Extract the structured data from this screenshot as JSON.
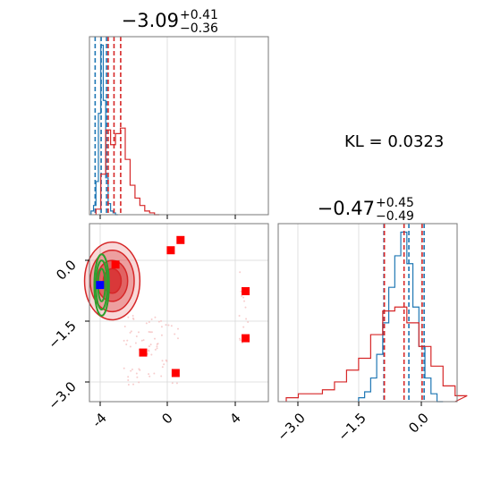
{
  "chart_data": [
    {
      "type": "histogram",
      "panel": "top-left marginal",
      "title": {
        "value": "−3.09",
        "plus": "+0.41",
        "minus": "−0.36"
      },
      "xlim": [
        -4.6,
        6.4
      ],
      "x_ticks": [
        -4,
        0,
        4
      ],
      "grid": true,
      "series": [
        {
          "color": "#1f77b4",
          "bins": [
            -4.5,
            -4.35,
            -4.2,
            -4.05,
            -3.9,
            -3.75,
            -3.6,
            -3.45,
            -3.3,
            -3.15,
            -3.0
          ],
          "counts": [
            2,
            5,
            18,
            55,
            92,
            62,
            20,
            6,
            2,
            1,
            0
          ],
          "quantile_lines": [
            -4.25,
            -3.88,
            -3.55
          ]
        },
        {
          "color": "#d62728",
          "bins": [
            -4.2,
            -3.9,
            -3.6,
            -3.3,
            -3.0,
            -2.7,
            -2.4,
            -2.1,
            -1.8,
            -1.5,
            -1.2,
            -0.9,
            -0.6
          ],
          "counts": [
            3,
            22,
            46,
            38,
            44,
            47,
            30,
            16,
            9,
            5,
            2,
            1,
            0
          ],
          "quantile_lines": [
            -3.45,
            -3.09,
            -2.68
          ]
        }
      ]
    },
    {
      "type": "histogram",
      "panel": "bottom-right marginal",
      "title": {
        "value": "−0.47",
        "plus": "+0.45",
        "minus": "−0.49"
      },
      "xlim": [
        -3.6,
        0.85
      ],
      "x_ticks": [
        -3.0,
        -1.5,
        0.0
      ],
      "x_tick_labels": [
        "−3.0",
        "−1.5",
        "0.0"
      ],
      "grid": true,
      "series": [
        {
          "color": "#1f77b4",
          "bins": [
            -1.6,
            -1.45,
            -1.3,
            -1.15,
            -1.0,
            -0.85,
            -0.7,
            -0.55,
            -0.4,
            -0.25,
            -0.1,
            0.05,
            0.2,
            0.35
          ],
          "counts": [
            2,
            5,
            12,
            24,
            40,
            58,
            74,
            86,
            70,
            48,
            28,
            12,
            4,
            0
          ],
          "quantile_lines": [
            -0.97,
            -0.35,
            0.03
          ]
        },
        {
          "color": "#d62728",
          "bins": [
            -3.4,
            -3.1,
            -2.8,
            -2.5,
            -2.2,
            -1.9,
            -1.6,
            -1.3,
            -1.0,
            -0.7,
            -0.4,
            -0.1,
            0.2,
            0.5,
            0.8
          ],
          "counts": [
            2,
            4,
            4,
            6,
            10,
            16,
            22,
            34,
            46,
            48,
            40,
            28,
            18,
            8,
            3
          ],
          "quantile_lines": [
            -0.96,
            -0.47,
            -0.02
          ]
        }
      ]
    },
    {
      "type": "scatter",
      "panel": "bottom-left joint",
      "xlim": [
        -4.6,
        6.4
      ],
      "ylim": [
        -3.5,
        0.85
      ],
      "x_ticks": [
        -4,
        0,
        4
      ],
      "y_ticks": [
        0.0,
        -1.5,
        -3.0
      ],
      "y_tick_labels": [
        "0.0",
        "−1.5",
        "−3.0"
      ],
      "grid": true,
      "red_squares": [
        {
          "x": -3.0,
          "y": -0.15
        },
        {
          "x": 0.4,
          "y": 0.2
        },
        {
          "x": 1.0,
          "y": 0.45
        },
        {
          "x": 5.0,
          "y": -0.8
        },
        {
          "x": 5.0,
          "y": -1.95
        },
        {
          "x": -1.3,
          "y": -2.3
        },
        {
          "x": 0.7,
          "y": -2.8
        }
      ],
      "blue_square": {
        "x": -3.95,
        "y": -0.65
      },
      "contours": [
        {
          "color": "#d62728",
          "center": [
            -3.2,
            -0.55
          ],
          "radii": [
            [
              1.7,
              0.95
            ],
            [
              1.35,
              0.75
            ],
            [
              0.95,
              0.5
            ],
            [
              0.55,
              0.3
            ]
          ]
        },
        {
          "color": "#2ca02c",
          "center": [
            -3.85,
            -0.65
          ],
          "radii": [
            [
              0.45,
              0.75
            ],
            [
              0.35,
              0.6
            ],
            [
              0.22,
              0.4
            ]
          ]
        }
      ]
    }
  ],
  "kl_label": "KL = 0.0323",
  "colors": {
    "blue": "#1f77b4",
    "red": "#d62728",
    "green": "#2ca02c",
    "marker_red": "#ff0000",
    "marker_blue": "#0000ff"
  }
}
